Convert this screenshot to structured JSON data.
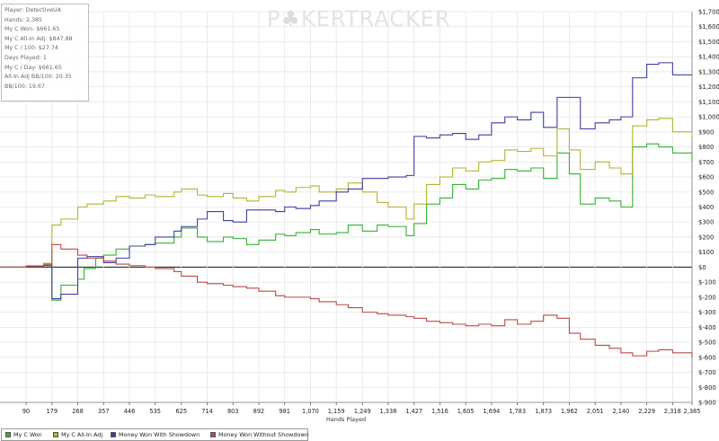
{
  "watermark": {
    "part1": "P",
    "part2": "KERTRACKER"
  },
  "stats": [
    "Player: DetectiveUA",
    "Hands: 2,385",
    "My C Won: $661.65",
    "My C All-In Adj: $847.88",
    "My C / 100: $27.74",
    "Days Played: 1",
    "My C / Day: $661.65",
    "All-In Adj BB/100: 20.35",
    "BB/100: 19.67"
  ],
  "chart_data": {
    "type": "line",
    "xlabel": "Hands Played",
    "xlim": [
      0,
      2385
    ],
    "x_ticks": [
      "90",
      "179",
      "268",
      "357",
      "446",
      "535",
      "625",
      "714",
      "803",
      "892",
      "981",
      "1,070",
      "1,159",
      "1,249",
      "1,338",
      "1,427",
      "1,516",
      "1,605",
      "1,694",
      "1,783",
      "1,873",
      "1,962",
      "2,051",
      "2,140",
      "2,229",
      "2,318",
      "2,385"
    ],
    "x_tick_values": [
      90,
      179,
      268,
      357,
      446,
      535,
      625,
      714,
      803,
      892,
      981,
      1070,
      1159,
      1249,
      1338,
      1427,
      1516,
      1605,
      1694,
      1783,
      1873,
      1962,
      2051,
      2140,
      2229,
      2318,
      2385
    ],
    "ylim": [
      -900,
      1700
    ],
    "y_ticks": [
      "$1,700",
      "$1,600",
      "$1,500",
      "$1,400",
      "$1,300",
      "$1,200",
      "$1,100",
      "$1,000",
      "$900",
      "$800",
      "$700",
      "$600",
      "$500",
      "$400",
      "$300",
      "$200",
      "$100",
      "$0",
      "$-100",
      "$-200",
      "$-300",
      "$-400",
      "$-500",
      "$-600",
      "$-700",
      "$-800",
      "$-900"
    ],
    "y_tick_values": [
      1700,
      1600,
      1500,
      1400,
      1300,
      1200,
      1100,
      1000,
      900,
      800,
      700,
      600,
      500,
      400,
      300,
      200,
      100,
      0,
      -100,
      -200,
      -300,
      -400,
      -500,
      -600,
      -700,
      -800,
      -900
    ],
    "grid": true,
    "legend_position": "bottom",
    "series": [
      {
        "name": "My C Won",
        "color": "#33b033",
        "points": [
          [
            0,
            0
          ],
          [
            90,
            10
          ],
          [
            150,
            25
          ],
          [
            179,
            -220
          ],
          [
            210,
            -120
          ],
          [
            268,
            -80
          ],
          [
            290,
            -10
          ],
          [
            330,
            60
          ],
          [
            357,
            80
          ],
          [
            400,
            120
          ],
          [
            446,
            140
          ],
          [
            500,
            150
          ],
          [
            535,
            160
          ],
          [
            600,
            200
          ],
          [
            625,
            260
          ],
          [
            680,
            200
          ],
          [
            714,
            170
          ],
          [
            770,
            200
          ],
          [
            803,
            190
          ],
          [
            850,
            150
          ],
          [
            892,
            180
          ],
          [
            950,
            220
          ],
          [
            981,
            210
          ],
          [
            1020,
            230
          ],
          [
            1070,
            250
          ],
          [
            1100,
            220
          ],
          [
            1159,
            230
          ],
          [
            1200,
            280
          ],
          [
            1249,
            240
          ],
          [
            1300,
            280
          ],
          [
            1338,
            270
          ],
          [
            1400,
            210
          ],
          [
            1427,
            290
          ],
          [
            1470,
            420
          ],
          [
            1516,
            460
          ],
          [
            1560,
            550
          ],
          [
            1605,
            520
          ],
          [
            1650,
            580
          ],
          [
            1694,
            590
          ],
          [
            1740,
            650
          ],
          [
            1783,
            640
          ],
          [
            1830,
            660
          ],
          [
            1873,
            590
          ],
          [
            1920,
            760
          ],
          [
            1962,
            620
          ],
          [
            2000,
            420
          ],
          [
            2051,
            460
          ],
          [
            2100,
            440
          ],
          [
            2140,
            400
          ],
          [
            2180,
            800
          ],
          [
            2229,
            820
          ],
          [
            2270,
            800
          ],
          [
            2318,
            760
          ],
          [
            2385,
            700
          ]
        ]
      },
      {
        "name": "My C All-In Adj",
        "color": "#b2b233",
        "points": [
          [
            0,
            0
          ],
          [
            90,
            10
          ],
          [
            150,
            20
          ],
          [
            179,
            280
          ],
          [
            210,
            320
          ],
          [
            268,
            400
          ],
          [
            300,
            420
          ],
          [
            357,
            440
          ],
          [
            400,
            470
          ],
          [
            446,
            460
          ],
          [
            500,
            480
          ],
          [
            535,
            470
          ],
          [
            600,
            500
          ],
          [
            625,
            520
          ],
          [
            680,
            480
          ],
          [
            714,
            470
          ],
          [
            770,
            490
          ],
          [
            803,
            460
          ],
          [
            850,
            440
          ],
          [
            892,
            470
          ],
          [
            950,
            510
          ],
          [
            981,
            500
          ],
          [
            1020,
            530
          ],
          [
            1070,
            540
          ],
          [
            1100,
            500
          ],
          [
            1159,
            520
          ],
          [
            1200,
            560
          ],
          [
            1249,
            500
          ],
          [
            1300,
            430
          ],
          [
            1338,
            400
          ],
          [
            1400,
            320
          ],
          [
            1427,
            420
          ],
          [
            1470,
            550
          ],
          [
            1516,
            600
          ],
          [
            1560,
            660
          ],
          [
            1605,
            640
          ],
          [
            1650,
            700
          ],
          [
            1694,
            710
          ],
          [
            1740,
            780
          ],
          [
            1783,
            770
          ],
          [
            1830,
            790
          ],
          [
            1873,
            740
          ],
          [
            1920,
            920
          ],
          [
            1962,
            780
          ],
          [
            2000,
            650
          ],
          [
            2051,
            700
          ],
          [
            2100,
            660
          ],
          [
            2140,
            620
          ],
          [
            2180,
            940
          ],
          [
            2229,
            980
          ],
          [
            2270,
            990
          ],
          [
            2318,
            900
          ],
          [
            2385,
            860
          ]
        ]
      },
      {
        "name": "Money Won With Showdown",
        "color": "#3f3f9f",
        "points": [
          [
            0,
            0
          ],
          [
            90,
            5
          ],
          [
            150,
            10
          ],
          [
            179,
            -210
          ],
          [
            210,
            -180
          ],
          [
            268,
            60
          ],
          [
            300,
            70
          ],
          [
            357,
            30
          ],
          [
            400,
            60
          ],
          [
            446,
            140
          ],
          [
            500,
            150
          ],
          [
            535,
            200
          ],
          [
            600,
            240
          ],
          [
            625,
            270
          ],
          [
            680,
            320
          ],
          [
            714,
            370
          ],
          [
            770,
            310
          ],
          [
            803,
            300
          ],
          [
            850,
            380
          ],
          [
            892,
            380
          ],
          [
            950,
            370
          ],
          [
            981,
            400
          ],
          [
            1020,
            390
          ],
          [
            1070,
            410
          ],
          [
            1100,
            440
          ],
          [
            1159,
            500
          ],
          [
            1200,
            520
          ],
          [
            1249,
            590
          ],
          [
            1300,
            590
          ],
          [
            1338,
            600
          ],
          [
            1400,
            610
          ],
          [
            1427,
            870
          ],
          [
            1470,
            860
          ],
          [
            1516,
            880
          ],
          [
            1560,
            890
          ],
          [
            1605,
            850
          ],
          [
            1650,
            880
          ],
          [
            1694,
            960
          ],
          [
            1740,
            1000
          ],
          [
            1783,
            980
          ],
          [
            1830,
            1030
          ],
          [
            1873,
            930
          ],
          [
            1920,
            1130
          ],
          [
            1962,
            1130
          ],
          [
            2000,
            920
          ],
          [
            2051,
            960
          ],
          [
            2100,
            980
          ],
          [
            2140,
            1000
          ],
          [
            2180,
            1260
          ],
          [
            2229,
            1350
          ],
          [
            2270,
            1360
          ],
          [
            2318,
            1280
          ],
          [
            2385,
            1280
          ]
        ]
      },
      {
        "name": "Money Won Without Showdown",
        "color": "#b84a47",
        "points": [
          [
            0,
            0
          ],
          [
            90,
            5
          ],
          [
            150,
            15
          ],
          [
            179,
            150
          ],
          [
            210,
            120
          ],
          [
            268,
            80
          ],
          [
            300,
            60
          ],
          [
            357,
            40
          ],
          [
            400,
            20
          ],
          [
            446,
            10
          ],
          [
            500,
            0
          ],
          [
            535,
            -10
          ],
          [
            600,
            -30
          ],
          [
            625,
            -60
          ],
          [
            680,
            -100
          ],
          [
            714,
            -110
          ],
          [
            770,
            -120
          ],
          [
            803,
            -130
          ],
          [
            850,
            -140
          ],
          [
            892,
            -160
          ],
          [
            950,
            -190
          ],
          [
            981,
            -200
          ],
          [
            1020,
            -200
          ],
          [
            1070,
            -210
          ],
          [
            1100,
            -230
          ],
          [
            1159,
            -250
          ],
          [
            1200,
            -270
          ],
          [
            1249,
            -300
          ],
          [
            1300,
            -310
          ],
          [
            1338,
            -320
          ],
          [
            1400,
            -330
          ],
          [
            1427,
            -340
          ],
          [
            1470,
            -360
          ],
          [
            1516,
            -370
          ],
          [
            1560,
            -380
          ],
          [
            1605,
            -390
          ],
          [
            1650,
            -380
          ],
          [
            1694,
            -390
          ],
          [
            1740,
            -350
          ],
          [
            1783,
            -380
          ],
          [
            1830,
            -360
          ],
          [
            1873,
            -320
          ],
          [
            1920,
            -340
          ],
          [
            1962,
            -440
          ],
          [
            2000,
            -480
          ],
          [
            2051,
            -520
          ],
          [
            2100,
            -540
          ],
          [
            2140,
            -570
          ],
          [
            2180,
            -590
          ],
          [
            2229,
            -560
          ],
          [
            2270,
            -550
          ],
          [
            2318,
            -570
          ],
          [
            2385,
            -600
          ]
        ]
      }
    ]
  }
}
